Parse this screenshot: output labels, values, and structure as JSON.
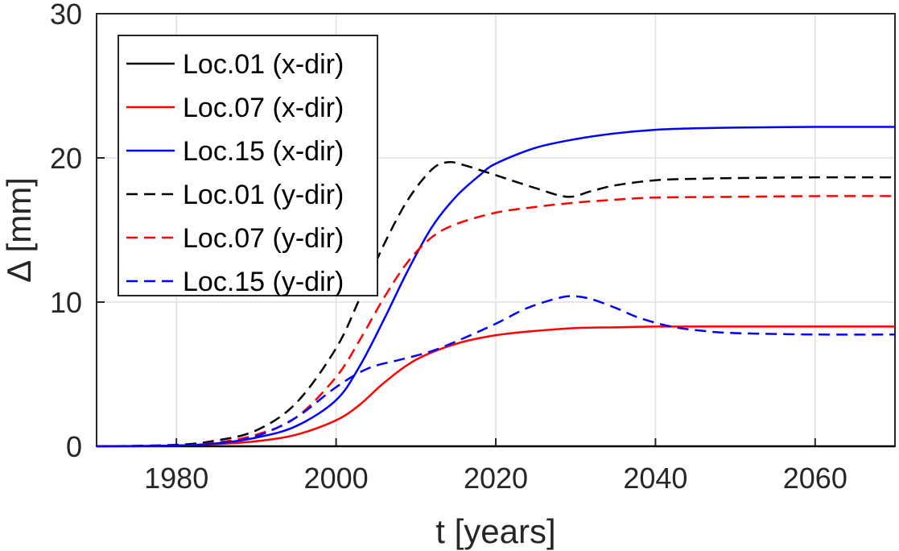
{
  "chart_data": {
    "type": "line",
    "title": "",
    "xlabel": "t [years]",
    "ylabel": "Δ [mm]",
    "xlim": [
      1970,
      2070
    ],
    "ylim": [
      0,
      30
    ],
    "xticks": [
      1980,
      2000,
      2020,
      2040,
      2060
    ],
    "yticks": [
      0,
      10,
      20,
      30
    ],
    "grid": true,
    "legend_position": "top-left",
    "series": [
      {
        "name": "Loc.01 (x-dir)",
        "color": "#000000",
        "style": "solid",
        "x": [
          1970,
          1980,
          1990,
          2000,
          2010,
          2020,
          2030,
          2040,
          2050,
          2060,
          2070
        ],
        "y": [
          0,
          0,
          0,
          0,
          0,
          0,
          0,
          0,
          0,
          0,
          0
        ]
      },
      {
        "name": "Loc.07 (x-dir)",
        "color": "#ff0000",
        "style": "solid",
        "x": [
          1970,
          1980,
          1985,
          1990,
          1995,
          2000,
          2003,
          2006,
          2010,
          2015,
          2020,
          2025,
          2030,
          2035,
          2040,
          2050,
          2060,
          2070
        ],
        "y": [
          0,
          0.05,
          0.15,
          0.35,
          0.8,
          1.8,
          2.9,
          4.4,
          6.0,
          7.1,
          7.7,
          8.0,
          8.2,
          8.25,
          8.3,
          8.3,
          8.3,
          8.3
        ]
      },
      {
        "name": "Loc.15 (x-dir)",
        "color": "#0000ff",
        "style": "solid",
        "x": [
          1970,
          1980,
          1985,
          1990,
          1995,
          2000,
          2003,
          2006,
          2009,
          2012,
          2015,
          2018,
          2020,
          2025,
          2030,
          2035,
          2040,
          2045,
          2050,
          2060,
          2070
        ],
        "y": [
          0,
          0.05,
          0.2,
          0.6,
          1.4,
          3.2,
          5.6,
          8.8,
          12.2,
          15.2,
          17.3,
          18.8,
          19.6,
          20.7,
          21.3,
          21.7,
          21.95,
          22.05,
          22.1,
          22.15,
          22.15
        ]
      },
      {
        "name": "Loc.01 (y-dir)",
        "color": "#000000",
        "style": "dashed",
        "x": [
          1970,
          1980,
          1985,
          1990,
          1995,
          2000,
          2003,
          2006,
          2009,
          2012,
          2014,
          2016,
          2020,
          2025,
          2029,
          2032,
          2035,
          2040,
          2045,
          2050,
          2060,
          2070
        ],
        "y": [
          0,
          0.1,
          0.4,
          1.1,
          3.0,
          6.8,
          10.3,
          14.0,
          17.1,
          19.2,
          19.7,
          19.5,
          18.8,
          17.9,
          17.3,
          17.7,
          18.1,
          18.45,
          18.55,
          18.6,
          18.65,
          18.65
        ]
      },
      {
        "name": "Loc.07 (y-dir)",
        "color": "#ff0000",
        "style": "dashed",
        "x": [
          1970,
          1980,
          1985,
          1990,
          1995,
          2000,
          2003,
          2006,
          2009,
          2012,
          2015,
          2020,
          2025,
          2030,
          2035,
          2040,
          2050,
          2060,
          2070
        ],
        "y": [
          0,
          0.05,
          0.25,
          0.8,
          2.0,
          4.8,
          7.4,
          10.3,
          12.8,
          14.5,
          15.4,
          16.2,
          16.6,
          16.9,
          17.1,
          17.25,
          17.3,
          17.35,
          17.35
        ]
      },
      {
        "name": "Loc.15 (y-dir)",
        "color": "#0000ff",
        "style": "dashed",
        "x": [
          1970,
          1980,
          1985,
          1990,
          1995,
          2000,
          2004,
          2008,
          2012,
          2016,
          2020,
          2024,
          2028,
          2030,
          2032,
          2035,
          2038,
          2042,
          2046,
          2050,
          2060,
          2070
        ],
        "y": [
          0,
          0.05,
          0.2,
          0.7,
          2.0,
          4.1,
          5.4,
          6.0,
          6.6,
          7.5,
          8.5,
          9.6,
          10.3,
          10.4,
          10.2,
          9.6,
          8.9,
          8.3,
          8.0,
          7.85,
          7.75,
          7.75
        ]
      }
    ]
  }
}
